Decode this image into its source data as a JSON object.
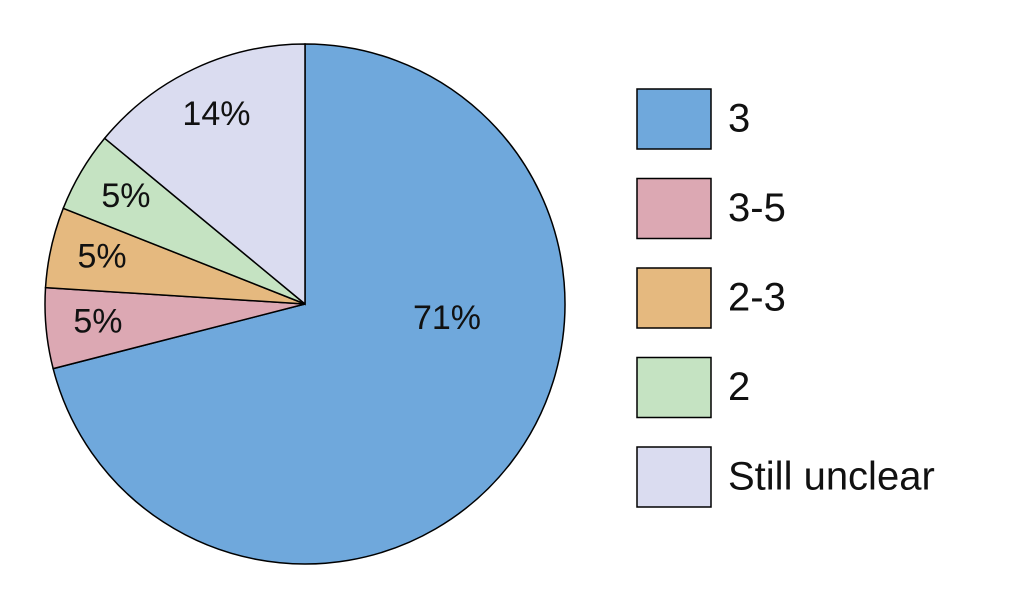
{
  "chart_data": {
    "type": "pie",
    "categories": [
      "3",
      "3-5",
      "2-3",
      "2",
      "Still unclear"
    ],
    "values": [
      71,
      5,
      5,
      5,
      14
    ],
    "value_labels": [
      "71%",
      "5%",
      "5%",
      "5%",
      "14%"
    ],
    "colors": [
      "#6fa8dc",
      "#dca8b3",
      "#e5b97f",
      "#c5e3c2",
      "#dadcf0"
    ],
    "legend": "right"
  }
}
